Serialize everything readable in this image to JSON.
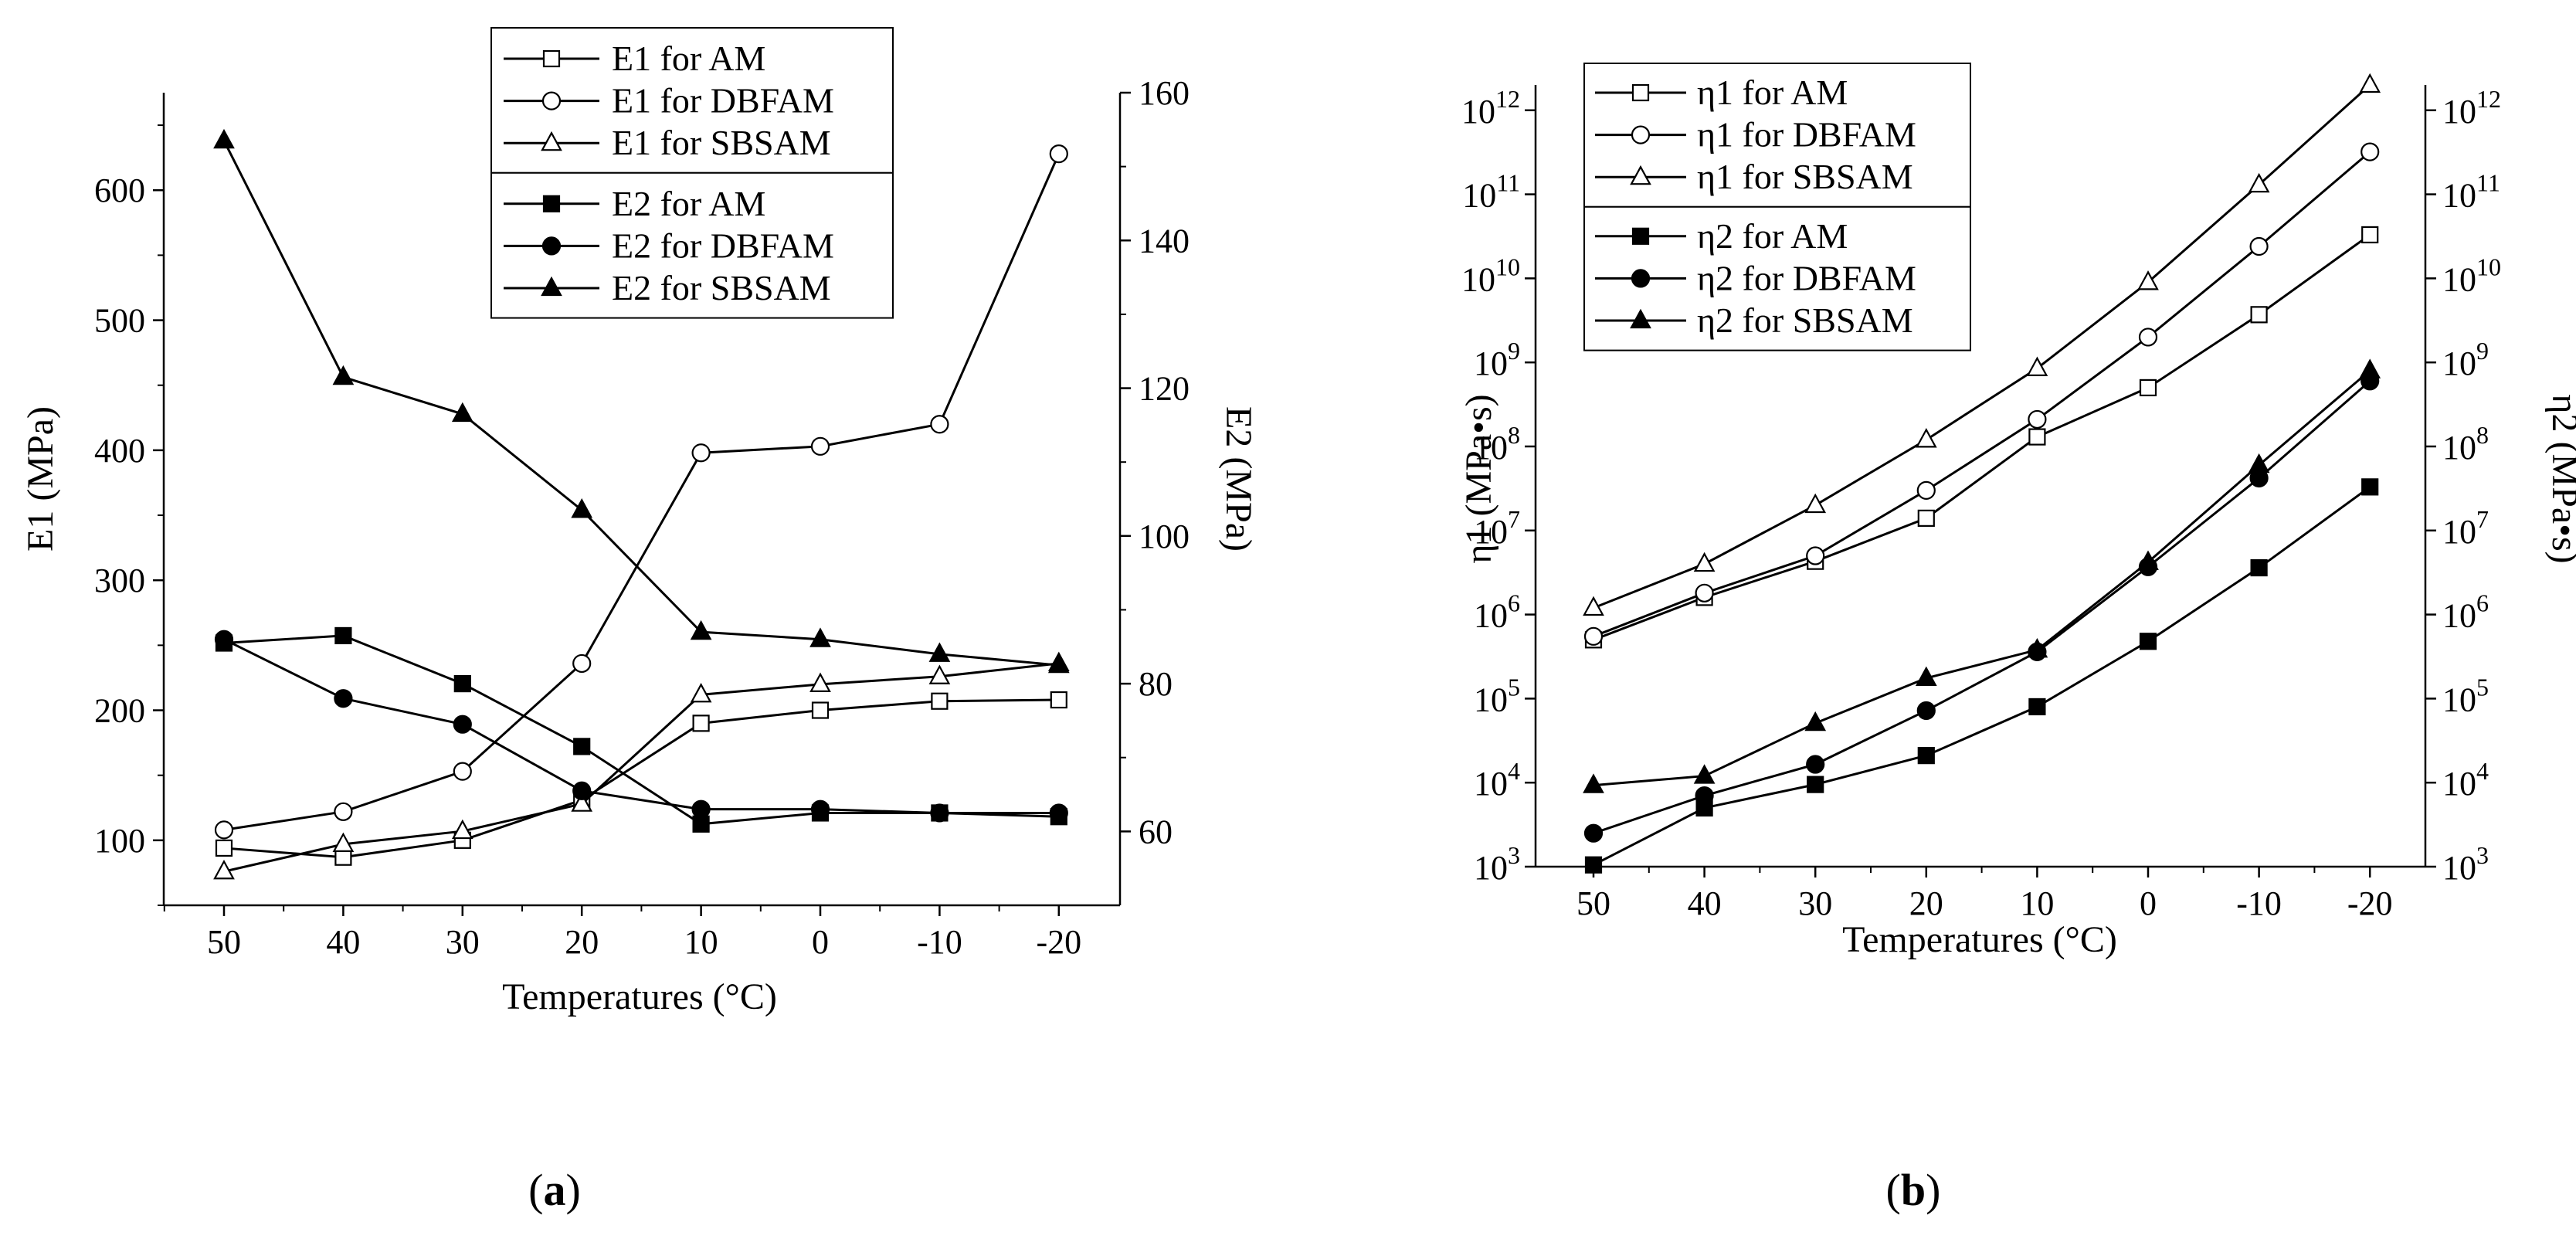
{
  "chart_data": [
    {
      "panel": "a",
      "caption": "(a)",
      "caption_letter": "a",
      "type": "line",
      "xlabel": "Temperatures (°C)",
      "ylabel": "E1 (MPa)",
      "y2label": "E2 (MPa)",
      "categories": [
        "50",
        "40",
        "30",
        "20",
        "10",
        "0",
        "-10",
        "-20"
      ],
      "ylim": [
        50,
        675
      ],
      "yticks": [
        100,
        200,
        300,
        400,
        500,
        600
      ],
      "y2lim": [
        50,
        160
      ],
      "y2ticks": [
        60,
        80,
        100,
        120,
        140,
        160
      ],
      "series": [
        {
          "name": "E1 for AM",
          "axis": "left",
          "marker": "square",
          "filled": false,
          "values": [
            94,
            87,
            100,
            131,
            190,
            200,
            207,
            208
          ]
        },
        {
          "name": "E1 for DBFAM",
          "axis": "left",
          "marker": "circle",
          "filled": false,
          "values": [
            108,
            122,
            153,
            236,
            398,
            403,
            420,
            628
          ]
        },
        {
          "name": "E1 for SBSAM",
          "axis": "left",
          "marker": "triangle",
          "filled": false,
          "values": [
            76,
            97,
            107,
            128,
            212,
            220,
            226,
            236
          ]
        },
        {
          "name": "E2 for AM",
          "axis": "right",
          "marker": "square",
          "filled": true,
          "values": [
            85.5,
            86.5,
            80,
            71.5,
            61,
            62.5,
            62.5,
            62
          ]
        },
        {
          "name": "E2 for DBFAM",
          "axis": "right",
          "marker": "circle",
          "filled": true,
          "values": [
            86,
            78,
            74.5,
            65.5,
            63,
            63,
            62.5,
            62.5
          ]
        },
        {
          "name": "E2 for SBSAM",
          "axis": "right",
          "marker": "triangle",
          "filled": true,
          "values": [
            153.5,
            121.5,
            116.5,
            103.5,
            87,
            86,
            84,
            82.5
          ]
        }
      ]
    },
    {
      "panel": "b",
      "caption": "(b)",
      "caption_letter": "b",
      "type": "line",
      "xlabel": "Temperatures (°C)",
      "ylabel": "η1 (MPa•s)",
      "y2label": "η2 (MPa•s)",
      "yscale": "log",
      "categories": [
        "50",
        "40",
        "30",
        "20",
        "10",
        "0",
        "-10",
        "-20"
      ],
      "ylim": [
        1000,
        2000000000000
      ],
      "yticks": [
        1000,
        10000,
        100000,
        1000000,
        10000000,
        100000000,
        1000000000,
        10000000000,
        100000000000,
        1000000000000
      ],
      "ytick_exponents": [
        "3",
        "4",
        "5",
        "6",
        "7",
        "8",
        "9",
        "10",
        "11",
        "12"
      ],
      "tick_base": "10",
      "series": [
        {
          "name": "η1 for AM",
          "marker": "square",
          "filled": false,
          "values": [
            500000,
            1600000,
            4300000,
            14000000,
            130000000,
            500000000,
            3700000000,
            33000000000
          ]
        },
        {
          "name": "η1 for DBFAM",
          "marker": "circle",
          "filled": false,
          "values": [
            550000,
            1800000,
            5000000,
            30000000,
            210000000,
            2000000000,
            24000000000,
            320000000000
          ]
        },
        {
          "name": "η1 for SBSAM",
          "marker": "triangle",
          "filled": false,
          "values": [
            1200000,
            4000000,
            20000000,
            120000000,
            850000000,
            9000000000,
            130000000000,
            2000000000000
          ]
        },
        {
          "name": "η2 for AM",
          "marker": "square",
          "filled": true,
          "values": [
            1050,
            5000,
            9500,
            21000,
            80000,
            480000,
            3600000,
            33000000
          ]
        },
        {
          "name": "η2 for DBFAM",
          "marker": "circle",
          "filled": true,
          "values": [
            2500,
            7000,
            16500,
            72000,
            360000,
            3700000,
            42000000,
            600000000
          ]
        },
        {
          "name": "η2 for SBSAM",
          "marker": "triangle",
          "filled": true,
          "values": [
            9300,
            12000,
            51000,
            175000,
            380000,
            4200000,
            60000000,
            800000000
          ]
        }
      ]
    }
  ]
}
